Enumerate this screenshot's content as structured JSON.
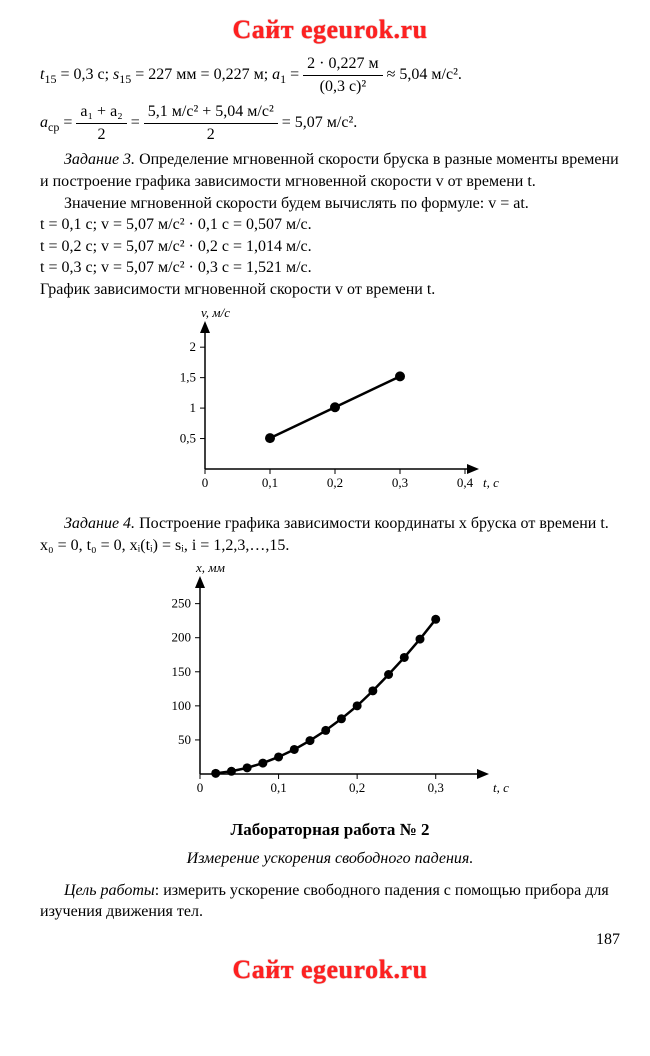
{
  "watermark": "Сайт egeurok.ru",
  "eq1": {
    "lhs1": "t",
    "sub1": "15",
    "val1": " = 0,3 с; ",
    "lhs2": "s",
    "sub2": "15",
    "val2": " = 227 мм = 0,227 м; ",
    "lhs3": "a",
    "sub3": "1",
    "mid": " = ",
    "frac_num": "2 · 0,227 м",
    "frac_den": "(0,3 с)²",
    "tail": " ≈ 5,04 м/с²."
  },
  "eq2": {
    "lhs": "a",
    "sub": "ср",
    "mid1": " = ",
    "f1num": "a₁ + a₂",
    "f1den": "2",
    "mid2": " = ",
    "f2num": "5,1 м/с² + 5,04 м/с²",
    "f2den": "2",
    "tail": " = 5,07 м/с²."
  },
  "task3": {
    "label": "Задание 3.",
    "text": " Определение мгновенной скорости бруска в разные моменты времени и построение графика зависимости мгновенной скорости v от времени t."
  },
  "line_formula": "Значение мгновенной скорости будем вычислять по формуле: v = at.",
  "calc1": "t = 0,1 с; v = 5,07 м/с² · 0,1 с = 0,507 м/с.",
  "calc2": "t = 0,2 с; v = 5,07 м/с² · 0,2 с = 1,014 м/с.",
  "calc3": "t = 0,3 с; v = 5,07 м/с² · 0,3 с = 1,521 м/с.",
  "graph_intro": "График зависимости мгновенной скорости v от времени t.",
  "chart1": {
    "type": "line",
    "ylabel": "v, м/с",
    "xlabel": "t, c",
    "xlim": [
      0,
      0.4
    ],
    "ylim": [
      0,
      2.2
    ],
    "xticks": [
      0,
      0.1,
      0.2,
      0.3,
      0.4
    ],
    "xtick_labels": [
      "0",
      "0,1",
      "0,2",
      "0,3",
      "0,4"
    ],
    "yticks": [
      0.5,
      1,
      1.5,
      2
    ],
    "ytick_labels": [
      "0,5",
      "1",
      "1,5",
      "2"
    ],
    "points": [
      [
        0.1,
        0.507
      ],
      [
        0.2,
        1.014
      ],
      [
        0.3,
        1.521
      ]
    ],
    "line_color": "#000000",
    "marker_size": 5,
    "line_width": 2.5,
    "axis_color": "#000000",
    "background_color": "#ffffff",
    "font_size": 13
  },
  "task4": {
    "label": "Задание 4.",
    "text": " Построение графика зависимости координаты x бруска от времени t."
  },
  "task4_line": "x₀ = 0, t₀ = 0, xᵢ(tᵢ) = sᵢ, i = 1,2,3,…,15.",
  "chart2": {
    "type": "scatter-line",
    "ylabel": "x, мм",
    "xlabel": "t, c",
    "xlim": [
      0,
      0.35
    ],
    "ylim": [
      0,
      270
    ],
    "xticks": [
      0,
      0.1,
      0.2,
      0.3
    ],
    "xtick_labels": [
      "0",
      "0,1",
      "0,2",
      "0,3"
    ],
    "yticks": [
      50,
      100,
      150,
      200,
      250
    ],
    "ytick_labels": [
      "50",
      "100",
      "150",
      "200",
      "250"
    ],
    "points": [
      [
        0.02,
        1
      ],
      [
        0.04,
        4
      ],
      [
        0.06,
        9
      ],
      [
        0.08,
        16
      ],
      [
        0.1,
        25
      ],
      [
        0.12,
        36
      ],
      [
        0.14,
        49
      ],
      [
        0.16,
        64
      ],
      [
        0.18,
        81
      ],
      [
        0.2,
        100
      ],
      [
        0.22,
        122
      ],
      [
        0.24,
        146
      ],
      [
        0.26,
        171
      ],
      [
        0.28,
        198
      ],
      [
        0.3,
        227
      ]
    ],
    "line_color": "#000000",
    "marker_size": 4.5,
    "line_width": 2.5,
    "axis_color": "#000000",
    "background_color": "#ffffff",
    "font_size": 13
  },
  "lab_title": "Лабораторная работа № 2",
  "lab_sub": "Измерение ускорения свободного падения.",
  "goal_label": "Цель работы",
  "goal_text": ": измерить ускорение свободного падения с помощью прибора для изучения движения тел.",
  "pagenum": "187"
}
